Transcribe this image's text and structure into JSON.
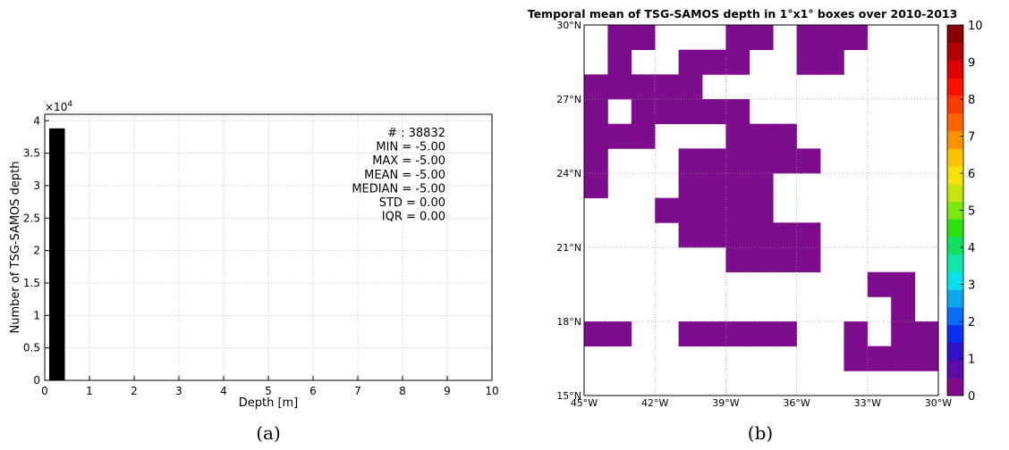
{
  "chart_data": [
    {
      "type": "bar",
      "panel_label": "(a)",
      "xlabel": "Depth [m]",
      "ylabel": "Number of TSG-SAMOS depth",
      "y_multiplier": "×10",
      "y_multiplier_exp": "4",
      "xlim": [
        0,
        10
      ],
      "ylim": [
        0,
        41000
      ],
      "x_ticks": [
        "0",
        "1",
        "2",
        "3",
        "4",
        "5",
        "6",
        "7",
        "8",
        "9",
        "10"
      ],
      "y_ticks": [
        "0",
        "0.5",
        "1",
        "1.5",
        "2",
        "2.5",
        "3",
        "3.5",
        "4"
      ],
      "y_tick_values": [
        0,
        5000,
        10000,
        15000,
        20000,
        25000,
        30000,
        35000,
        40000
      ],
      "grid": true,
      "bars": [
        {
          "x0": 0.1,
          "x1": 0.45,
          "value": 38832,
          "color": "#000000"
        }
      ],
      "stats": [
        "# : 38832",
        "MIN = -5.00",
        "MAX =  -5.00",
        "MEAN = -5.00",
        "MEDIAN = -5.00",
        "STD = 0.00",
        "IQR = 0.00"
      ]
    },
    {
      "type": "heatmap",
      "panel_label": "(b)",
      "title": "Temporal mean of TSG-SAMOS depth in 1°x1° boxes over 2010-2013",
      "lon_range": [
        -45,
        -30
      ],
      "lat_range": [
        15,
        30
      ],
      "x_ticks": [
        "45°W",
        "42°W",
        "39°W",
        "36°W",
        "33°W",
        "30°W"
      ],
      "y_ticks": [
        "15°N",
        "18°N",
        "21°N",
        "24°N",
        "27°N",
        "30°N"
      ],
      "grid": true,
      "cell_color": "#7d0d8c",
      "cell_value": 0,
      "cells_lon_west_edge_by_lat_south_edge": {
        "29": [
          -44,
          -43,
          -39,
          -38,
          -36,
          -35,
          -34
        ],
        "28": [
          -44,
          -41,
          -40,
          -39,
          -36,
          -35
        ],
        "27": [
          -45,
          -44,
          -43,
          -42,
          -41
        ],
        "26": [
          -45,
          -43,
          -42,
          -41,
          -40,
          -39
        ],
        "25": [
          -45,
          -44,
          -43,
          -39,
          -38,
          -37
        ],
        "24": [
          -45,
          -41,
          -40,
          -39,
          -38,
          -37,
          -36
        ],
        "23": [
          -45,
          -41,
          -40,
          -39,
          -38
        ],
        "22": [
          -42,
          -41,
          -40,
          -39,
          -38
        ],
        "21": [
          -41,
          -40,
          -39,
          -38,
          -37,
          -36
        ],
        "20": [
          -39,
          -38,
          -37,
          -36
        ],
        "19": [
          -33,
          -32
        ],
        "18": [
          -32
        ],
        "17": [
          -45,
          -44,
          -41,
          -40,
          -39,
          -38,
          -37,
          -34,
          -32,
          -31
        ],
        "16": [
          -34,
          -33,
          -32,
          -31
        ]
      },
      "colorbar": {
        "ticks": [
          "0",
          "1",
          "2",
          "3",
          "4",
          "5",
          "6",
          "7",
          "8",
          "9",
          "10"
        ],
        "range": [
          0,
          10
        ],
        "colors": [
          "#7d0d8c",
          "#5a0ba8",
          "#3212c8",
          "#0a2ef0",
          "#0a6cf5",
          "#0aa8f0",
          "#0ae0ea",
          "#10e8a8",
          "#12e060",
          "#2ee010",
          "#7ce610",
          "#c8e410",
          "#f5e00a",
          "#ffc000",
          "#ff9000",
          "#ff6400",
          "#ff3a00",
          "#ff1000",
          "#e00000",
          "#b00000",
          "#8a0000"
        ]
      }
    }
  ]
}
